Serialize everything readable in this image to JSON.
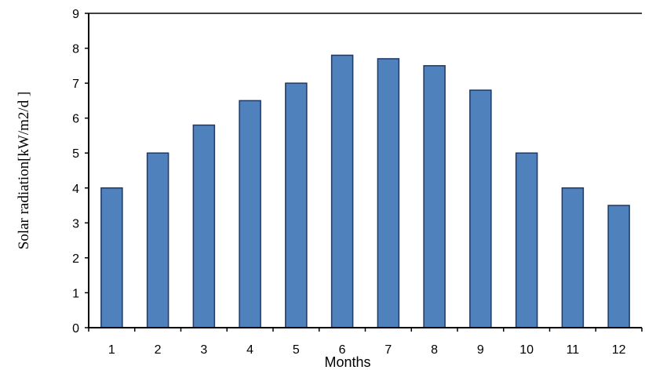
{
  "chart_data": {
    "type": "bar",
    "title": "",
    "xlabel": "Months",
    "ylabel": "Solar radiation[kW/m2/d ]",
    "categories": [
      "1",
      "2",
      "3",
      "4",
      "5",
      "6",
      "7",
      "8",
      "9",
      "10",
      "11",
      "12"
    ],
    "values": [
      4.0,
      5.0,
      5.8,
      6.5,
      7.0,
      7.8,
      7.7,
      7.5,
      6.8,
      5.0,
      4.0,
      3.5
    ],
    "ylim": [
      0,
      9
    ],
    "yticks": [
      "0",
      "1",
      "2",
      "3",
      "4",
      "5",
      "6",
      "7",
      "8",
      "9"
    ],
    "grid": false,
    "legend": "none",
    "bar_color": "#4f81bd",
    "bar_edge_color": "#1f3864"
  }
}
